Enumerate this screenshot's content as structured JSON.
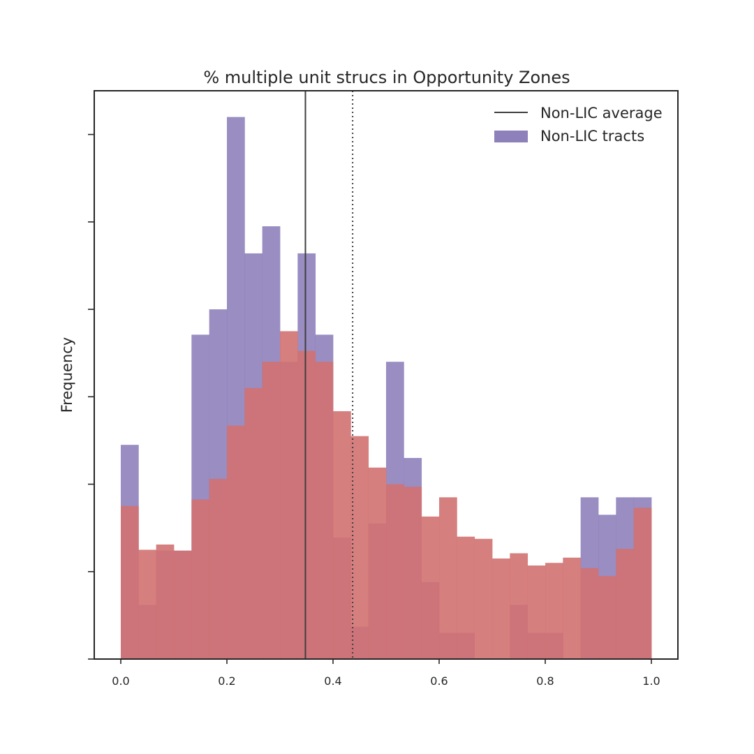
{
  "chart_data": {
    "type": "bar",
    "title": "% multiple unit strucs in Opportunity Zones",
    "xlabel": "",
    "ylabel": "Frequency",
    "xlim": [
      -0.05,
      1.05
    ],
    "ylim": [
      0,
      13
    ],
    "x_ticks": [
      "0.0",
      "0.2",
      "0.4",
      "0.6",
      "0.8",
      "1.0"
    ],
    "y_tick_values": [
      0,
      2,
      4,
      6,
      8,
      10,
      12
    ],
    "y_tick_labels_shown": false,
    "grid": false,
    "bins": {
      "start": 0.0,
      "end": 1.0,
      "count": 30
    },
    "legend": {
      "position": "top-right",
      "entries": [
        {
          "label": "Non-LIC average",
          "kind": "line"
        },
        {
          "label": "Non-LIC tracts",
          "kind": "patch"
        }
      ]
    },
    "series": [
      {
        "name": "Non-LIC tracts",
        "color": "#8e81bb",
        "values": [
          4.9,
          1.24,
          2.48,
          2.48,
          7.42,
          8.0,
          12.4,
          9.28,
          9.9,
          6.8,
          9.28,
          7.42,
          2.78,
          0.74,
          3.1,
          6.8,
          4.6,
          1.76,
          0.6,
          0.6,
          0.0,
          0.0,
          1.24,
          0.6,
          0.6,
          0.0,
          3.7,
          3.3,
          3.7,
          3.7
        ]
      },
      {
        "name": "",
        "color": "#d27171",
        "values": [
          3.5,
          2.5,
          2.62,
          2.48,
          3.65,
          4.12,
          5.34,
          6.2,
          6.8,
          7.5,
          7.05,
          6.8,
          5.67,
          5.1,
          4.38,
          4.0,
          3.94,
          3.26,
          3.7,
          2.8,
          2.75,
          2.3,
          2.42,
          2.14,
          2.2,
          2.32,
          2.08,
          1.9,
          2.52,
          3.46
        ]
      }
    ],
    "vertical_lines": [
      {
        "x": 0.348,
        "style": "solid",
        "color": "#3f3f3f"
      },
      {
        "x": 0.437,
        "style": "dotted",
        "color": "#3f3f3f"
      }
    ]
  }
}
